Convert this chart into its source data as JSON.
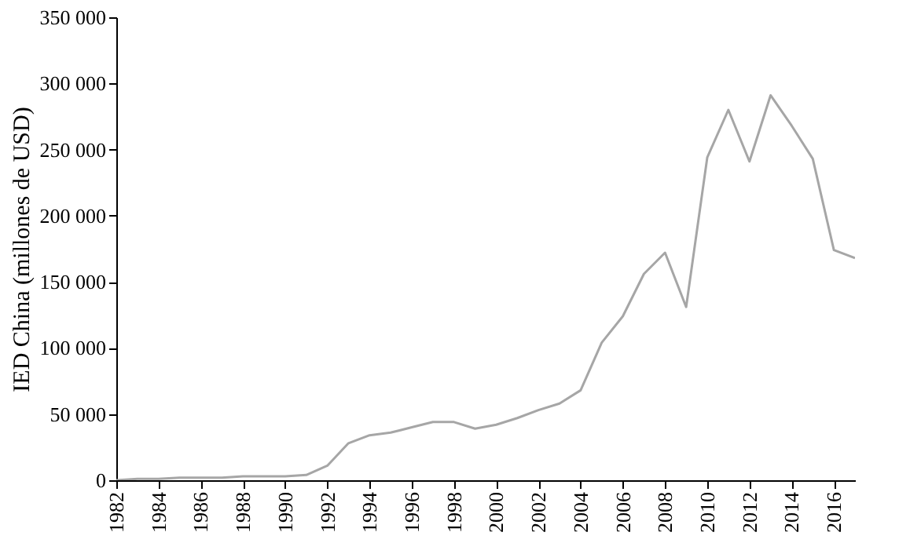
{
  "chart_data": {
    "type": "line",
    "ylabel": "IED China (millones de USD)",
    "x": [
      1982,
      1983,
      1984,
      1985,
      1986,
      1987,
      1988,
      1989,
      1990,
      1991,
      1992,
      1993,
      1994,
      1995,
      1996,
      1997,
      1998,
      1999,
      2000,
      2001,
      2002,
      2003,
      2004,
      2005,
      2006,
      2007,
      2008,
      2009,
      2010,
      2011,
      2012,
      2013,
      2014,
      2015,
      2016,
      2017
    ],
    "series": [
      {
        "color": "#a6a6a6",
        "values": [
          0,
          1000,
          1000,
          2000,
          2000,
          2000,
          3000,
          3000,
          3000,
          4000,
          11000,
          28000,
          34000,
          36000,
          40000,
          44000,
          44000,
          39000,
          42000,
          47000,
          53000,
          58000,
          68000,
          104000,
          124000,
          156000,
          172000,
          131000,
          244000,
          280000,
          241000,
          291000,
          268000,
          243000,
          174000,
          168000
        ]
      }
    ],
    "xlim": [
      1982,
      2017
    ],
    "xticks": [
      1982,
      1984,
      1986,
      1988,
      1990,
      1992,
      1994,
      1996,
      1998,
      2000,
      2002,
      2004,
      2006,
      2008,
      2010,
      2012,
      2014,
      2016
    ],
    "ylim": [
      0,
      350000
    ],
    "yticks": [
      0,
      {
        "value": 50000,
        "label": "50 000"
      },
      {
        "value": 100000,
        "label": "100 000"
      },
      {
        "value": 150000,
        "label": "150 000"
      },
      {
        "value": 200000,
        "label": "200 000"
      },
      {
        "value": 250000,
        "label": "250 000"
      },
      {
        "value": 300000,
        "label": "300 000"
      },
      {
        "value": 350000,
        "label": "350 000"
      }
    ],
    "grid": false,
    "line_style": "solid",
    "marker": "none"
  }
}
